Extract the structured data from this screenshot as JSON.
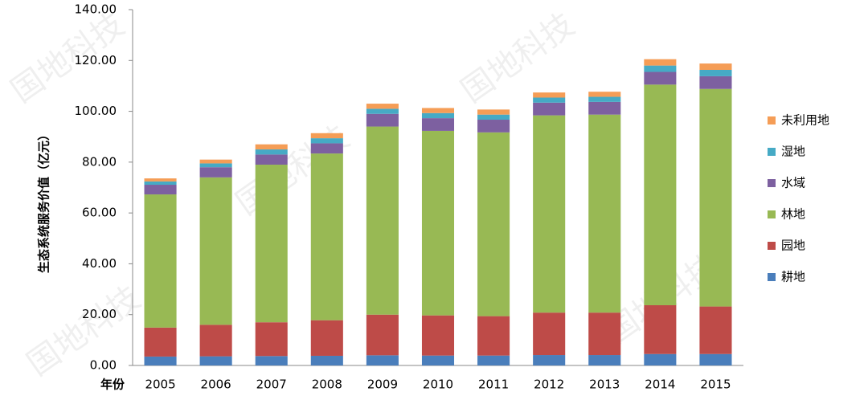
{
  "chart_data": {
    "type": "stacked_bar",
    "y_label": "生态系统服务价值（亿元）",
    "x_label": "年份",
    "watermark": "国地科技",
    "categories": [
      "2005",
      "2006",
      "2007",
      "2008",
      "2009",
      "2010",
      "2011",
      "2012",
      "2013",
      "2014",
      "2015"
    ],
    "series": [
      {
        "name": "耕地",
        "color": "#4a7ebb",
        "values": [
          3.5,
          3.6,
          3.7,
          3.8,
          4,
          3.9,
          3.9,
          4.1,
          4.1,
          4.5,
          4.5
        ]
      },
      {
        "name": "园地",
        "color": "#be4b48",
        "values": [
          11.4,
          12.4,
          13.3,
          14,
          16,
          15.8,
          15.5,
          16.7,
          16.7,
          19.2,
          18.7
        ]
      },
      {
        "name": "林地",
        "color": "#98b954",
        "values": [
          52.4,
          58,
          62,
          65.6,
          74,
          72.6,
          72.3,
          77.6,
          77.9,
          86.8,
          85.6
        ]
      },
      {
        "name": "水域",
        "color": "#7d60a0",
        "values": [
          3.8,
          4,
          4,
          4,
          5,
          5,
          5,
          5,
          5,
          5,
          5
        ]
      },
      {
        "name": "湿地",
        "color": "#46aac5",
        "values": [
          1.3,
          1.5,
          2,
          2,
          2,
          2,
          2,
          2,
          2,
          2.5,
          2.5
        ]
      },
      {
        "name": "未利用地",
        "color": "#f59d56",
        "values": [
          1.2,
          1.5,
          2,
          2,
          2,
          2,
          2,
          2,
          2,
          2.5,
          2.5
        ]
      }
    ],
    "ylim": [
      0,
      140
    ],
    "yticks": [
      {
        "value": 0,
        "label": "0.00"
      },
      {
        "value": 20,
        "label": "20.00"
      },
      {
        "value": 40,
        "label": "40.00"
      },
      {
        "value": 60,
        "label": "60.00"
      },
      {
        "value": 80,
        "label": "80.00"
      },
      {
        "value": 100,
        "label": "100.00"
      },
      {
        "value": 120,
        "label": "120.00"
      },
      {
        "value": 140,
        "label": "140.00"
      }
    ],
    "legend": "right"
  }
}
